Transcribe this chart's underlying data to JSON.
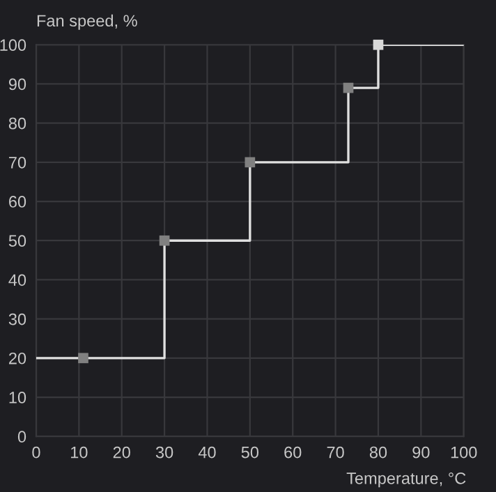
{
  "chart_data": {
    "type": "step",
    "title": "Fan speed, %",
    "xlabel": "Temperature, °C",
    "series": [
      {
        "color": "#e0e0e0",
        "x": [
          0,
          30,
          50,
          73,
          80,
          100
        ],
        "values": [
          20,
          50,
          70,
          89,
          100,
          100
        ]
      },
      {
        "type": "scatter",
        "colors": [
          "#808080",
          "#808080",
          "#808080",
          "#808080",
          "#d8d8d8"
        ],
        "marker": "square",
        "x": [
          11,
          30,
          50,
          73,
          80
        ],
        "values": [
          20,
          50,
          70,
          89,
          100
        ]
      }
    ],
    "xlim": [
      0,
      100
    ],
    "ylim": [
      0,
      100
    ],
    "xticks": [
      0,
      10,
      20,
      30,
      40,
      50,
      60,
      70,
      80,
      90,
      100
    ],
    "yticks": [
      0,
      10,
      20,
      30,
      40,
      50,
      60,
      70,
      80,
      90,
      100
    ],
    "grid": true
  }
}
